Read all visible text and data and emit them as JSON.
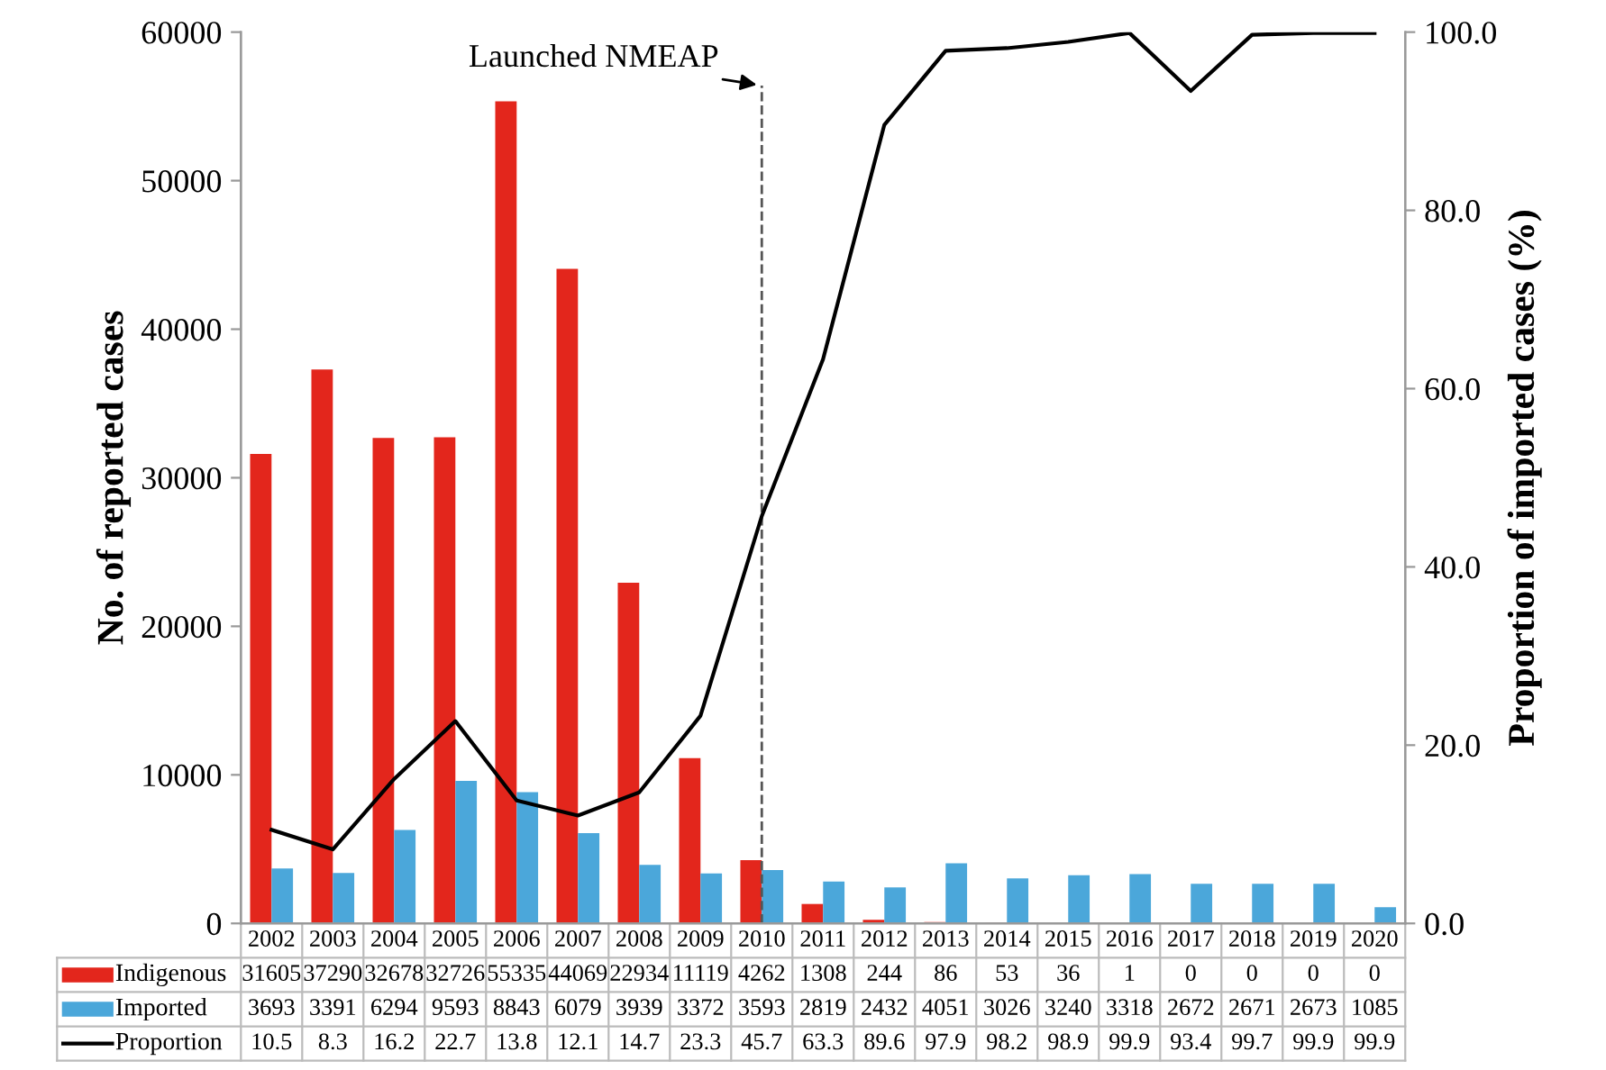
{
  "chart_data": {
    "type": "bar",
    "ylabel": "No. of reported cases",
    "y2label": "Proportion of imported cases (%)",
    "categories": [
      "2002",
      "2003",
      "2004",
      "2005",
      "2006",
      "2007",
      "2008",
      "2009",
      "2010",
      "2011",
      "2012",
      "2013",
      "2014",
      "2015",
      "2016",
      "2017",
      "2018",
      "2019",
      "2020"
    ],
    "series": [
      {
        "name": "Indigenous",
        "color": "#e3261c",
        "values": [
          31605,
          37290,
          32678,
          32726,
          55335,
          44069,
          22934,
          11119,
          4262,
          1308,
          244,
          86,
          53,
          36,
          1,
          0,
          0,
          0,
          0
        ]
      },
      {
        "name": "Imported",
        "color": "#4ba7da",
        "values": [
          3693,
          3391,
          6294,
          9593,
          8843,
          6079,
          3939,
          3372,
          3593,
          2819,
          2432,
          4051,
          3026,
          3240,
          3318,
          2672,
          2671,
          2673,
          1085
        ]
      },
      {
        "name": "Proportion",
        "type": "line",
        "axis": "y2",
        "color": "#000000",
        "values": [
          10.5,
          8.3,
          16.2,
          22.7,
          13.8,
          12.1,
          14.7,
          23.3,
          45.7,
          63.3,
          89.6,
          97.9,
          98.2,
          98.9,
          99.9,
          93.4,
          99.7,
          99.9,
          99.9
        ]
      }
    ],
    "ylim": [
      0,
      60000
    ],
    "yticks": [
      0,
      10000,
      20000,
      30000,
      40000,
      50000,
      60000
    ],
    "y2lim": [
      0,
      100
    ],
    "y2ticks": [
      {
        "value": 0,
        "label": "0.0"
      },
      {
        "value": 20,
        "label": "20.0"
      },
      {
        "value": 40,
        "label": "40.0"
      },
      {
        "value": 60,
        "label": "60.0"
      },
      {
        "value": 80,
        "label": "80.0"
      },
      {
        "value": 100,
        "label": "100.0"
      }
    ],
    "ref_lines": [
      {
        "axis": "x",
        "value": "2010",
        "label": "Launched NMEAP",
        "line_style": "dashed",
        "color": "#555555"
      }
    ],
    "data_labels": true,
    "legend": "bottom",
    "grid": false
  }
}
